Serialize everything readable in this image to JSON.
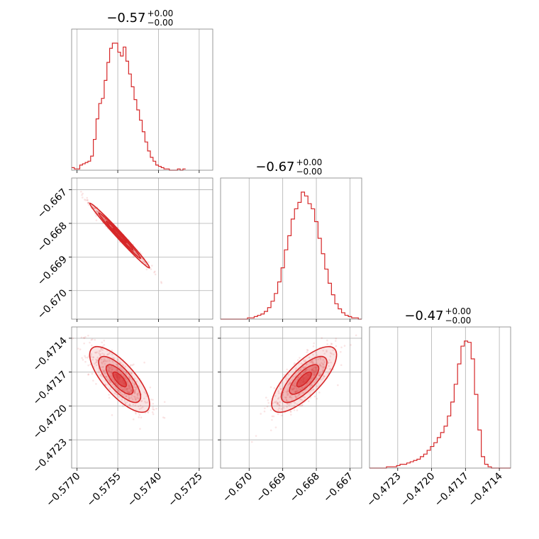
{
  "chart_data": {
    "type": "corner",
    "color": "#d62728",
    "grid": true,
    "panel_titles": [
      {
        "value": "−0.57",
        "sup": "+0.00",
        "sub": "−0.00"
      },
      {
        "value": "−0.67",
        "sup": "+0.00",
        "sub": "−0.00"
      },
      {
        "value": "−0.47",
        "sup": "+0.00",
        "sub": "−0.00"
      }
    ],
    "params": [
      {
        "range": [
          -0.5772,
          -0.572
        ],
        "ticks": [
          -0.577,
          -0.5755,
          -0.574,
          -0.5725
        ],
        "tick_labels": [
          "−0.5770",
          "−0.5755",
          "−0.5740",
          "−0.5725"
        ]
      },
      {
        "range": [
          -0.67085,
          -0.66665
        ],
        "ticks": [
          -0.67,
          -0.669,
          -0.668,
          -0.667
        ],
        "tick_labels": [
          "−0.670",
          "−0.669",
          "−0.668",
          "−0.667"
        ]
      },
      {
        "range": [
          -0.47255,
          -0.4713
        ],
        "ticks": [
          -0.4723,
          -0.472,
          -0.4717,
          -0.4714
        ],
        "tick_labels": [
          "−0.4723",
          "−0.4720",
          "−0.4717",
          "−0.4714"
        ]
      }
    ],
    "histograms": [
      {
        "param": 0,
        "x_start": -0.5772,
        "bin_width": 0.0001,
        "counts": [
          2,
          1,
          1,
          4,
          5,
          6,
          7,
          11,
          24,
          40,
          52,
          56,
          70,
          84,
          95,
          99,
          99,
          92,
          89,
          96,
          85,
          75,
          65,
          55,
          47,
          39,
          30,
          22,
          15,
          10,
          7,
          4,
          3,
          2,
          1,
          1,
          0,
          0,
          0,
          1,
          0,
          1
        ]
      },
      {
        "param": 1,
        "x_start": -0.67085,
        "bin_width": 0.0001,
        "counts": [
          0,
          0,
          0,
          0,
          0,
          0,
          0,
          0,
          1,
          1,
          2,
          3,
          4,
          6,
          9,
          14,
          20,
          29,
          40,
          54,
          65,
          78,
          86,
          91,
          99,
          96,
          90,
          86,
          76,
          63,
          51,
          39,
          28,
          19,
          12,
          8,
          5,
          3,
          2,
          1,
          1,
          0
        ]
      },
      {
        "param": 2,
        "x_start": -0.47255,
        "bin_width": 3e-05,
        "counts": [
          0,
          0,
          0,
          0,
          0,
          1,
          1,
          1,
          2,
          3,
          3,
          4,
          5,
          6,
          7,
          9,
          11,
          14,
          17,
          20,
          24,
          28,
          33,
          41,
          52,
          66,
          82,
          96,
          100,
          99,
          86,
          58,
          30,
          9,
          3,
          1,
          0,
          0,
          0,
          0,
          0,
          0
        ]
      }
    ],
    "scatter_pairs": [
      {
        "x_param": 0,
        "y_param": 1
      },
      {
        "x_param": 0,
        "y_param": 2
      },
      {
        "x_param": 1,
        "y_param": 2
      }
    ]
  }
}
